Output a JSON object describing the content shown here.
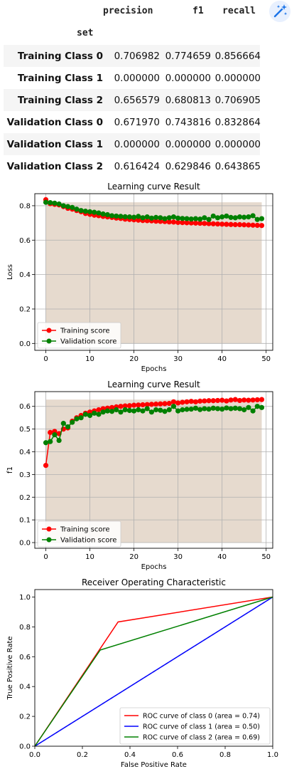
{
  "table": {
    "columns": [
      "precision",
      "f1",
      "recall"
    ],
    "index_name": "set",
    "rows": [
      {
        "label": "Training Class 0",
        "values": [
          "0.706982",
          "0.774659",
          "0.856664"
        ]
      },
      {
        "label": "Training Class 1",
        "values": [
          "0.000000",
          "0.000000",
          "0.000000"
        ]
      },
      {
        "label": "Training Class 2",
        "values": [
          "0.656579",
          "0.680813",
          "0.706905"
        ]
      },
      {
        "label": "Validation Class 0",
        "values": [
          "0.671970",
          "0.743816",
          "0.832864"
        ]
      },
      {
        "label": "Validation Class 1",
        "values": [
          "0.000000",
          "0.000000",
          "0.000000"
        ]
      },
      {
        "label": "Validation Class 2",
        "values": [
          "0.616424",
          "0.629846",
          "0.643865"
        ]
      }
    ]
  },
  "toolbar": {
    "magic_icon": "magic-wand-icon"
  },
  "chart_data": [
    {
      "type": "line",
      "title": "Learning curve Result",
      "xlabel": "Epochs",
      "ylabel": "Loss",
      "xlim": [
        -2.5,
        51.5
      ],
      "ylim": [
        -0.04,
        0.87
      ],
      "xticks": [
        0,
        10,
        20,
        30,
        40,
        50
      ],
      "yticks": [
        0.0,
        0.2,
        0.4,
        0.6,
        0.8
      ],
      "ytick_labels": [
        "0.0",
        "0.2",
        "0.4",
        "0.6",
        "0.8"
      ],
      "grid": true,
      "legend_position": "lower-left",
      "fill": {
        "color": "#e6dace",
        "x": [
          0,
          49
        ],
        "ymax": 0.82
      },
      "x": [
        0,
        1,
        2,
        3,
        4,
        5,
        6,
        7,
        8,
        9,
        10,
        11,
        12,
        13,
        14,
        15,
        16,
        17,
        18,
        19,
        20,
        21,
        22,
        23,
        24,
        25,
        26,
        27,
        28,
        29,
        30,
        31,
        32,
        33,
        34,
        35,
        36,
        37,
        38,
        39,
        40,
        41,
        42,
        43,
        44,
        45,
        46,
        47,
        48,
        49
      ],
      "series": [
        {
          "name": "Training score",
          "color": "#ff0000",
          "values": [
            0.835,
            0.812,
            0.808,
            0.805,
            0.795,
            0.785,
            0.78,
            0.772,
            0.765,
            0.755,
            0.75,
            0.745,
            0.742,
            0.738,
            0.735,
            0.732,
            0.728,
            0.726,
            0.722,
            0.72,
            0.718,
            0.716,
            0.714,
            0.713,
            0.712,
            0.71,
            0.709,
            0.708,
            0.706,
            0.705,
            0.703,
            0.702,
            0.701,
            0.7,
            0.699,
            0.698,
            0.697,
            0.696,
            0.695,
            0.694,
            0.693,
            0.692,
            0.691,
            0.69,
            0.69,
            0.689,
            0.688,
            0.687,
            0.686,
            0.685
          ]
        },
        {
          "name": "Validation score",
          "color": "#008000",
          "values": [
            0.82,
            0.818,
            0.815,
            0.81,
            0.8,
            0.795,
            0.79,
            0.78,
            0.772,
            0.768,
            0.765,
            0.762,
            0.758,
            0.752,
            0.748,
            0.742,
            0.74,
            0.738,
            0.736,
            0.735,
            0.733,
            0.738,
            0.73,
            0.735,
            0.728,
            0.732,
            0.73,
            0.725,
            0.73,
            0.735,
            0.728,
            0.726,
            0.725,
            0.723,
            0.725,
            0.722,
            0.73,
            0.72,
            0.74,
            0.73,
            0.735,
            0.74,
            0.732,
            0.73,
            0.735,
            0.733,
            0.735,
            0.742,
            0.72,
            0.725
          ]
        }
      ]
    },
    {
      "type": "line",
      "title": "Learning curve Result",
      "xlabel": "Epochs",
      "ylabel": "f1",
      "xlim": [
        -2.5,
        51.5
      ],
      "ylim": [
        -0.025,
        0.665
      ],
      "xticks": [
        0,
        10,
        20,
        30,
        40,
        50
      ],
      "yticks": [
        0.0,
        0.1,
        0.2,
        0.3,
        0.4,
        0.5,
        0.6
      ],
      "ytick_labels": [
        "0.0",
        "0.1",
        "0.2",
        "0.3",
        "0.4",
        "0.5",
        "0.6"
      ],
      "grid": true,
      "legend_position": "lower-left",
      "fill": {
        "color": "#e6dace",
        "x": [
          0,
          49
        ],
        "ymax": 0.63
      },
      "x": [
        0,
        1,
        2,
        3,
        4,
        5,
        6,
        7,
        8,
        9,
        10,
        11,
        12,
        13,
        14,
        15,
        16,
        17,
        18,
        19,
        20,
        21,
        22,
        23,
        24,
        25,
        26,
        27,
        28,
        29,
        30,
        31,
        32,
        33,
        34,
        35,
        36,
        37,
        38,
        39,
        40,
        41,
        42,
        43,
        44,
        45,
        46,
        47,
        48,
        49
      ],
      "series": [
        {
          "name": "Training score",
          "color": "#ff0000",
          "values": [
            0.34,
            0.485,
            0.49,
            0.48,
            0.5,
            0.505,
            0.535,
            0.55,
            0.56,
            0.57,
            0.575,
            0.58,
            0.585,
            0.59,
            0.592,
            0.595,
            0.598,
            0.6,
            0.602,
            0.603,
            0.605,
            0.606,
            0.607,
            0.608,
            0.609,
            0.61,
            0.611,
            0.612,
            0.613,
            0.62,
            0.615,
            0.618,
            0.62,
            0.622,
            0.62,
            0.623,
            0.624,
            0.625,
            0.625,
            0.626,
            0.627,
            0.624,
            0.628,
            0.63,
            0.626,
            0.628,
            0.627,
            0.628,
            0.629,
            0.63
          ]
        },
        {
          "name": "Validation score",
          "color": "#008000",
          "values": [
            0.44,
            0.445,
            0.475,
            0.45,
            0.525,
            0.51,
            0.53,
            0.545,
            0.55,
            0.565,
            0.56,
            0.57,
            0.565,
            0.575,
            0.58,
            0.578,
            0.585,
            0.575,
            0.585,
            0.582,
            0.58,
            0.585,
            0.58,
            0.59,
            0.575,
            0.585,
            0.583,
            0.578,
            0.585,
            0.6,
            0.58,
            0.585,
            0.587,
            0.588,
            0.592,
            0.586,
            0.59,
            0.588,
            0.592,
            0.59,
            0.588,
            0.593,
            0.59,
            0.592,
            0.59,
            0.585,
            0.595,
            0.58,
            0.6,
            0.595
          ]
        }
      ]
    },
    {
      "type": "line",
      "title": "Receiver Operating Characteristic",
      "xlabel": "False Positive Rate",
      "ylabel": "True Positive Rate",
      "xlim": [
        0.0,
        1.0
      ],
      "ylim": [
        0.0,
        1.05
      ],
      "xticks": [
        0.0,
        0.2,
        0.4,
        0.6,
        0.8,
        1.0
      ],
      "xtick_labels": [
        "0.0",
        "0.2",
        "0.4",
        "0.6",
        "0.8",
        "1.0"
      ],
      "yticks": [
        0.0,
        0.2,
        0.4,
        0.6,
        0.8,
        1.0
      ],
      "ytick_labels": [
        "0.0",
        "0.2",
        "0.4",
        "0.6",
        "0.8",
        "1.0"
      ],
      "grid": false,
      "legend_position": "lower-right",
      "diagonal": {
        "color": "#000000",
        "dash": true
      },
      "series": [
        {
          "name": "ROC curve of class 0 (area = 0.74)",
          "color": "#ff0000",
          "x": [
            0,
            0.35,
            1
          ],
          "values": [
            0,
            0.833,
            1
          ]
        },
        {
          "name": "ROC curve of class 1 (area = 0.50)",
          "color": "#0000ff",
          "x": [
            0,
            1
          ],
          "values": [
            0,
            1
          ]
        },
        {
          "name": "ROC curve of class 2 (area = 0.69)",
          "color": "#008000",
          "x": [
            0,
            0.275,
            1
          ],
          "values": [
            0,
            0.645,
            1
          ]
        }
      ]
    }
  ]
}
